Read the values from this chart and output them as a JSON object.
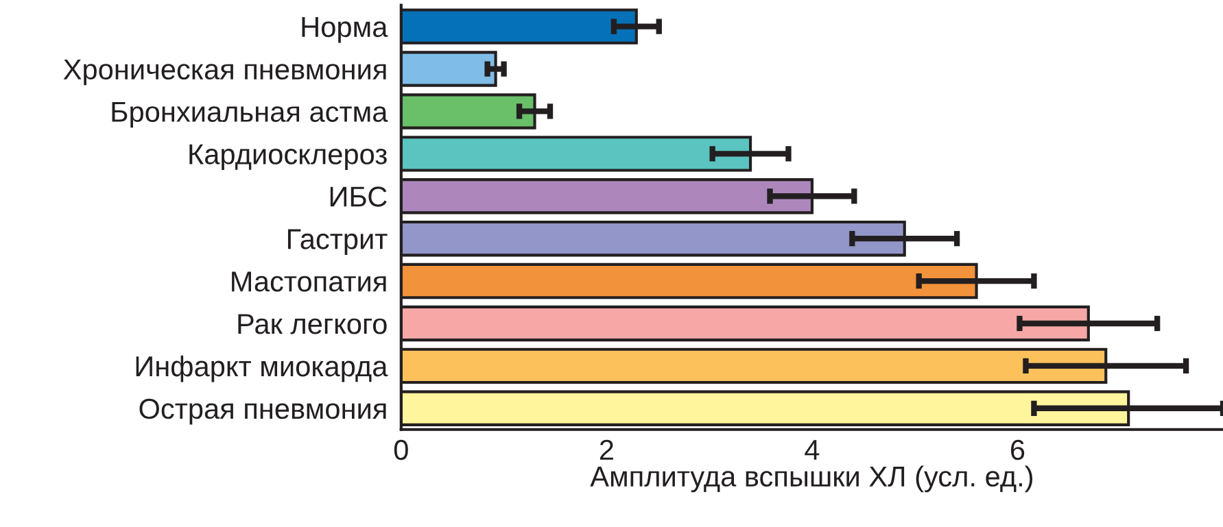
{
  "chart_data": {
    "type": "bar",
    "orientation": "horizontal",
    "xlabel": "Амплитуда вспышки ХЛ (усл. ед.)",
    "categories": [
      "Норма",
      "Хроническая пневмония",
      "Бронхиальная астма",
      "Кардиосклероз",
      "ИБС",
      "Гастрит",
      "Мастопатия",
      "Рак легкого",
      "Инфаркт миокарда",
      "Острая пневмония"
    ],
    "values": [
      2.29,
      0.92,
      1.3,
      3.4,
      4.0,
      4.9,
      5.6,
      6.69,
      6.86,
      7.08
    ],
    "errors": [
      0.22,
      0.08,
      0.15,
      0.37,
      0.41,
      0.51,
      0.56,
      0.67,
      0.78,
      0.92
    ],
    "colors": [
      "#0571b8",
      "#7fbce8",
      "#6abf69",
      "#5bc4c1",
      "#ad87bc",
      "#9296c8",
      "#f2923b",
      "#f6a7a6",
      "#fdc15b",
      "#fff59d"
    ],
    "xlim": [
      0,
      8
    ],
    "xticks": [
      0,
      2,
      4,
      6
    ],
    "grid": false,
    "legend": false
  }
}
